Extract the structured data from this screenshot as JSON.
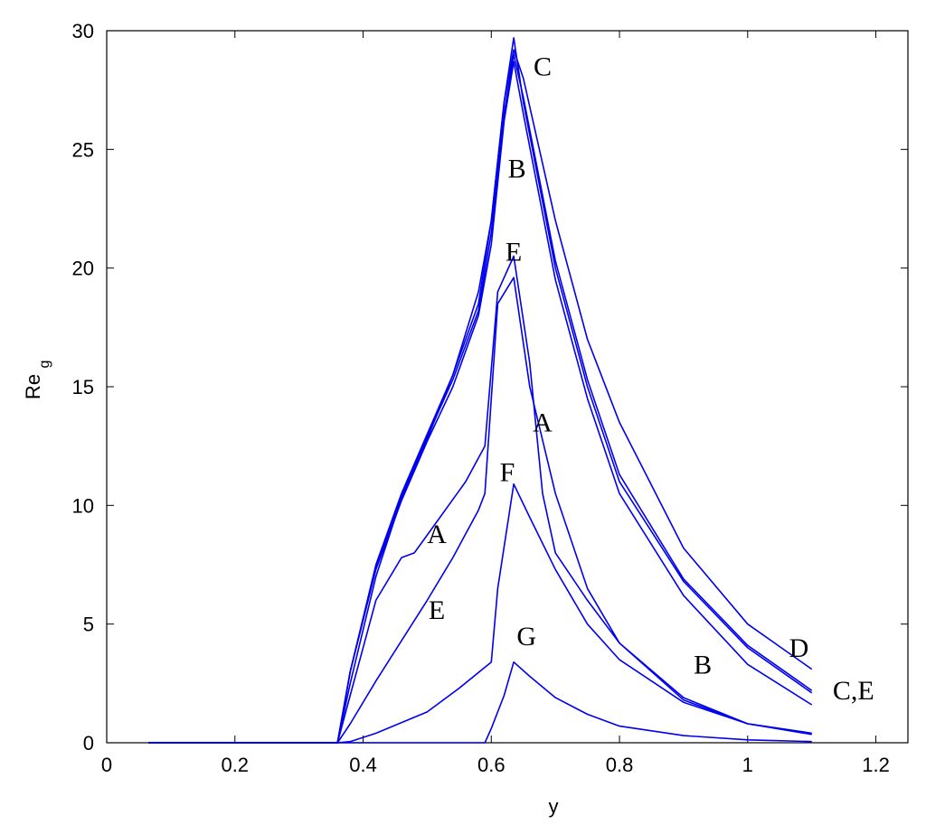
{
  "chart_data": {
    "type": "line",
    "xlabel": "y",
    "ylabel": "Re",
    "ylabel_subscript": "g",
    "xlim": [
      0,
      1.25
    ],
    "ylim": [
      0,
      30
    ],
    "x_ticks": [
      0,
      0.2,
      0.4,
      0.6,
      0.8,
      1,
      1.2
    ],
    "x_tick_labels": [
      "0",
      "0.2",
      "0.4",
      "0.6",
      "0.8",
      "1",
      "1.2"
    ],
    "y_ticks": [
      0,
      5,
      10,
      15,
      20,
      25,
      30
    ],
    "y_tick_labels": [
      "0",
      "5",
      "10",
      "15",
      "20",
      "25",
      "30"
    ],
    "grid": false,
    "line_color": "#0000ee",
    "series": [
      {
        "x": [
          0.065,
          0.36,
          0.38,
          0.42,
          0.46,
          0.5,
          0.54,
          0.58,
          0.6,
          0.62,
          0.635,
          0.65,
          0.7,
          0.75,
          0.8,
          0.9,
          1.0,
          1.1
        ],
        "y": [
          0,
          0,
          3.0,
          7.5,
          10.5,
          13.0,
          15.5,
          18.5,
          22.0,
          27.0,
          29.7,
          27.0,
          20.0,
          15.0,
          11.0,
          6.8,
          4.0,
          2.1
        ]
      },
      {
        "x": [
          0.065,
          0.36,
          0.38,
          0.42,
          0.46,
          0.5,
          0.54,
          0.58,
          0.6,
          0.62,
          0.635,
          0.65,
          0.7,
          0.75,
          0.8,
          0.9,
          1.0,
          1.1
        ],
        "y": [
          0,
          0,
          3.0,
          7.3,
          10.2,
          12.7,
          15.0,
          18.0,
          21.0,
          26.2,
          28.7,
          26.5,
          19.5,
          14.5,
          10.5,
          6.2,
          3.3,
          1.6
        ]
      },
      {
        "x": [
          0.065,
          0.36,
          0.38,
          0.42,
          0.46,
          0.5,
          0.54,
          0.58,
          0.6,
          0.62,
          0.635,
          0.65,
          0.7,
          0.75,
          0.8,
          0.9,
          1.0,
          1.1
        ],
        "y": [
          0,
          0,
          2.5,
          7.0,
          10.3,
          12.8,
          15.5,
          19.0,
          22.0,
          27.0,
          29.2,
          28.0,
          22.0,
          17.0,
          13.5,
          8.2,
          5.0,
          3.1
        ]
      },
      {
        "x": [
          0.065,
          0.36,
          0.38,
          0.42,
          0.46,
          0.5,
          0.54,
          0.58,
          0.6,
          0.62,
          0.635,
          0.65,
          0.7,
          0.75,
          0.8,
          0.9,
          1.0,
          1.1
        ],
        "y": [
          0,
          0,
          3.0,
          7.4,
          10.4,
          12.9,
          15.3,
          18.2,
          21.5,
          26.5,
          29.0,
          27.2,
          20.3,
          15.3,
          11.3,
          6.9,
          4.1,
          2.2
        ]
      },
      {
        "x": [
          0.065,
          0.36,
          0.38,
          0.42,
          0.46,
          0.5,
          0.54,
          0.58,
          0.59,
          0.61,
          0.635,
          0.66,
          0.7,
          0.75,
          0.8,
          0.9,
          1.0,
          1.1
        ],
        "y": [
          0,
          0,
          0.8,
          2.6,
          4.3,
          6.0,
          7.8,
          9.8,
          10.5,
          18.5,
          19.6,
          15.0,
          10.5,
          6.5,
          4.2,
          1.8,
          0.8,
          0.4
        ]
      },
      {
        "x": [
          0.065,
          0.36,
          0.38,
          0.42,
          0.46,
          0.48,
          0.52,
          0.56,
          0.59,
          0.61,
          0.635,
          0.66,
          0.68,
          0.7,
          0.75,
          0.8,
          0.9,
          1.0,
          1.1
        ],
        "y": [
          0,
          0,
          2.0,
          6.0,
          7.8,
          8.0,
          9.5,
          11.0,
          12.5,
          19.0,
          20.5,
          16.0,
          10.5,
          8.0,
          6.0,
          4.2,
          1.9,
          0.8,
          0.4
        ]
      },
      {
        "x": [
          0.065,
          0.36,
          0.38,
          0.42,
          0.5,
          0.55,
          0.6,
          0.61,
          0.635,
          0.66,
          0.7,
          0.75,
          0.8,
          0.9,
          1.0,
          1.1
        ],
        "y": [
          0,
          0,
          0.05,
          0.4,
          1.3,
          2.3,
          3.4,
          6.5,
          10.9,
          9.5,
          7.3,
          5.0,
          3.5,
          1.7,
          0.8,
          0.35
        ]
      },
      {
        "x": [
          0.065,
          0.59,
          0.6,
          0.62,
          0.635,
          0.66,
          0.7,
          0.75,
          0.8,
          0.9,
          1.0,
          1.1
        ],
        "y": [
          0,
          0,
          0.6,
          2.0,
          3.4,
          2.8,
          1.9,
          1.2,
          0.7,
          0.3,
          0.12,
          0.05
        ]
      }
    ],
    "annotations": [
      {
        "text": "C",
        "x": 0.68,
        "y": 28.5
      },
      {
        "text": "B",
        "x": 0.64,
        "y": 24.2
      },
      {
        "text": "E",
        "x": 0.635,
        "y": 20.7
      },
      {
        "text": "A",
        "x": 0.68,
        "y": 13.5
      },
      {
        "text": "F",
        "x": 0.625,
        "y": 11.4
      },
      {
        "text": "A",
        "x": 0.515,
        "y": 8.8
      },
      {
        "text": "E",
        "x": 0.515,
        "y": 5.6
      },
      {
        "text": "G",
        "x": 0.655,
        "y": 4.5
      },
      {
        "text": "D",
        "x": 1.08,
        "y": 4.0
      },
      {
        "text": "B",
        "x": 0.93,
        "y": 3.3
      },
      {
        "text": "C,E",
        "x": 1.165,
        "y": 2.2
      }
    ]
  }
}
